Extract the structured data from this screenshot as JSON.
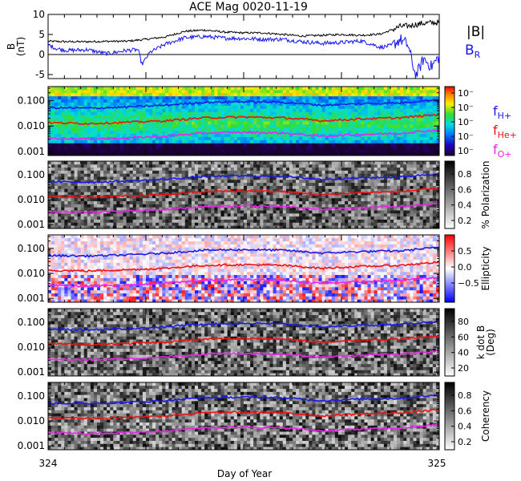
{
  "figure": {
    "title": "ACE Mag 0020-11-19",
    "xlabel": "Day of Year",
    "xticks": [
      "324",
      "325"
    ]
  },
  "legend": {
    "b_total": "|B|",
    "b_radial": "B",
    "b_radial_sub": "R",
    "f_h_main": "f",
    "f_h_sub": "H+",
    "f_he_main": "f",
    "f_he_sub": "He+",
    "f_o_main": "f",
    "f_o_sub": "O+"
  },
  "colors": {
    "b_total": "#000000",
    "b_radial": "#1515ee",
    "f_h": "#1a1ae6",
    "f_he": "#ee1111",
    "f_o": "#ee22ee"
  },
  "chart_data": [
    {
      "id": "mag",
      "type": "line",
      "ylabel": "B",
      "ylabel_unit": "(nT)",
      "ylim": [
        -6,
        10
      ],
      "yticks": [
        "-5",
        "0",
        "5",
        "10"
      ],
      "x_day_range": [
        324,
        325
      ],
      "series": [
        {
          "name": "|B|",
          "x": [
            324.0,
            324.05,
            324.1,
            324.15,
            324.2,
            324.25,
            324.3,
            324.35,
            324.4,
            324.45,
            324.5,
            324.55,
            324.6,
            324.65,
            324.7,
            324.75,
            324.8,
            324.85,
            324.88,
            324.9,
            324.92,
            324.94,
            324.96,
            324.98,
            325.0
          ],
          "values": [
            3.3,
            3.2,
            3.2,
            3.3,
            3.3,
            3.8,
            4.4,
            5.8,
            6.1,
            5.6,
            5.4,
            5.4,
            5.0,
            4.6,
            4.8,
            5.0,
            4.8,
            5.1,
            6.2,
            7.0,
            7.1,
            7.5,
            7.8,
            7.9,
            8.0
          ]
        },
        {
          "name": "B_R",
          "x": [
            324.0,
            324.02,
            324.05,
            324.1,
            324.15,
            324.2,
            324.23,
            324.24,
            324.26,
            324.3,
            324.35,
            324.4,
            324.45,
            324.5,
            324.55,
            324.6,
            324.65,
            324.7,
            324.75,
            324.8,
            324.83,
            324.85,
            324.88,
            324.9,
            324.92,
            324.94,
            324.96,
            324.98,
            325.0
          ],
          "values": [
            2.5,
            1.5,
            1.0,
            1.2,
            0.2,
            1.0,
            1.2,
            -2.5,
            0.5,
            2.6,
            4.2,
            4.5,
            4.1,
            4.0,
            3.8,
            3.8,
            3.2,
            2.8,
            3.0,
            3.4,
            2.5,
            1.8,
            2.3,
            3.8,
            2.4,
            -5.5,
            -1.0,
            -3.0,
            -0.5
          ]
        }
      ]
    },
    {
      "id": "power",
      "type": "heatmap",
      "colorbar_ticks": [
        "10⁻",
        "10⁻",
        "10⁻",
        "10⁻",
        "10⁻"
      ],
      "yticks": [
        "0.100",
        "0.010",
        "0.001"
      ],
      "ylim": [
        0.0007,
        0.35
      ],
      "log_y": true
    },
    {
      "id": "polarization",
      "type": "heatmap",
      "colorbar_label": "% Polarization",
      "colorbar_ticks": [
        "0.8",
        "0.6",
        "0.4",
        "0.2"
      ],
      "yticks": [
        "0.100",
        "0.010",
        "0.001"
      ],
      "ylim": [
        0.0007,
        0.35
      ],
      "log_y": true
    },
    {
      "id": "ellipticity",
      "type": "heatmap",
      "colorbar_label": "Ellipticity",
      "colorbar_ticks": [
        "0.5",
        "0.0",
        "−0.5"
      ],
      "yticks": [
        "0.100",
        "0.010",
        "0.001"
      ],
      "ylim": [
        0.0007,
        0.35
      ],
      "log_y": true
    },
    {
      "id": "kdotb",
      "type": "heatmap",
      "colorbar_label": "k dot B",
      "colorbar_label2": "(Deg)",
      "colorbar_ticks": [
        "80",
        "60",
        "40",
        "20"
      ],
      "yticks": [
        "0.100",
        "0.010",
        "0.001"
      ],
      "ylim": [
        0.0007,
        0.35
      ],
      "log_y": true
    },
    {
      "id": "coherency",
      "type": "heatmap",
      "colorbar_label": "Coherency",
      "colorbar_ticks": [
        "0.8",
        "0.6",
        "0.4",
        "0.2"
      ],
      "yticks": [
        "0.100",
        "0.010",
        "0.001"
      ],
      "ylim": [
        0.0007,
        0.35
      ],
      "log_y": true
    }
  ],
  "gyrofrequency_lines": {
    "x": [
      324.0,
      324.1,
      324.2,
      324.3,
      324.4,
      324.5,
      324.6,
      324.7,
      324.8,
      324.9,
      325.0
    ],
    "f_h_values": [
      0.052,
      0.05,
      0.055,
      0.065,
      0.085,
      0.09,
      0.085,
      0.065,
      0.075,
      0.08,
      0.11
    ],
    "f_he_values": [
      0.0135,
      0.0125,
      0.014,
      0.016,
      0.021,
      0.0225,
      0.021,
      0.016,
      0.019,
      0.021,
      0.028
    ],
    "f_o_values": [
      0.0033,
      0.0031,
      0.0034,
      0.004,
      0.0053,
      0.0057,
      0.0053,
      0.004,
      0.0047,
      0.0052,
      0.007
    ]
  }
}
